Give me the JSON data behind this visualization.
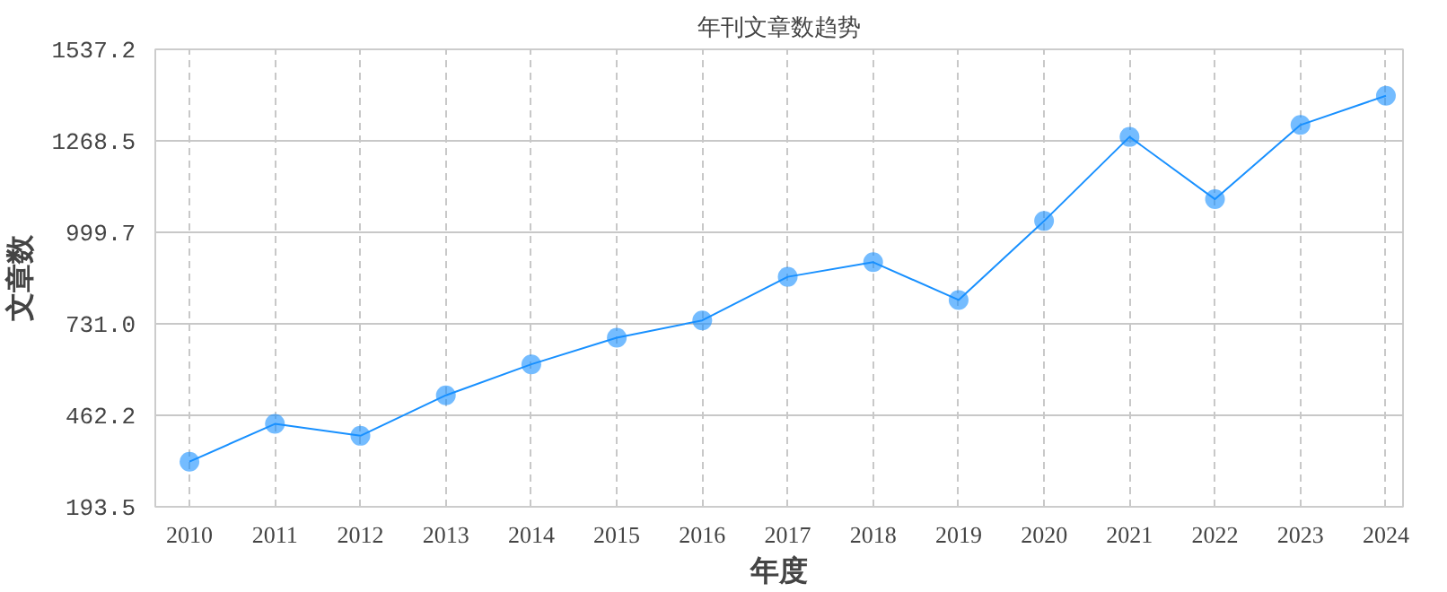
{
  "chart_data": {
    "type": "line",
    "title": "年刊文章数趋势",
    "xlabel": "年度",
    "ylabel": "文章数",
    "categories": [
      "2010",
      "2011",
      "2012",
      "2013",
      "2014",
      "2015",
      "2016",
      "2017",
      "2018",
      "2019",
      "2020",
      "2021",
      "2022",
      "2023",
      "2024"
    ],
    "series": [
      {
        "color": "#1890ff",
        "values": [
          326,
          437,
          402,
          521,
          612,
          690,
          741,
          869,
          912,
          801,
          1033,
          1280,
          1097,
          1315,
          1401
        ]
      }
    ],
    "ylim": [
      193.5,
      1537.2
    ],
    "yticks": [
      193.5,
      462.2,
      {
        "value": 731.0,
        "label": "731.0"
      },
      999.7,
      1268.5,
      1537.2
    ],
    "grid": true,
    "marker": "circle",
    "line_style": "solid"
  }
}
